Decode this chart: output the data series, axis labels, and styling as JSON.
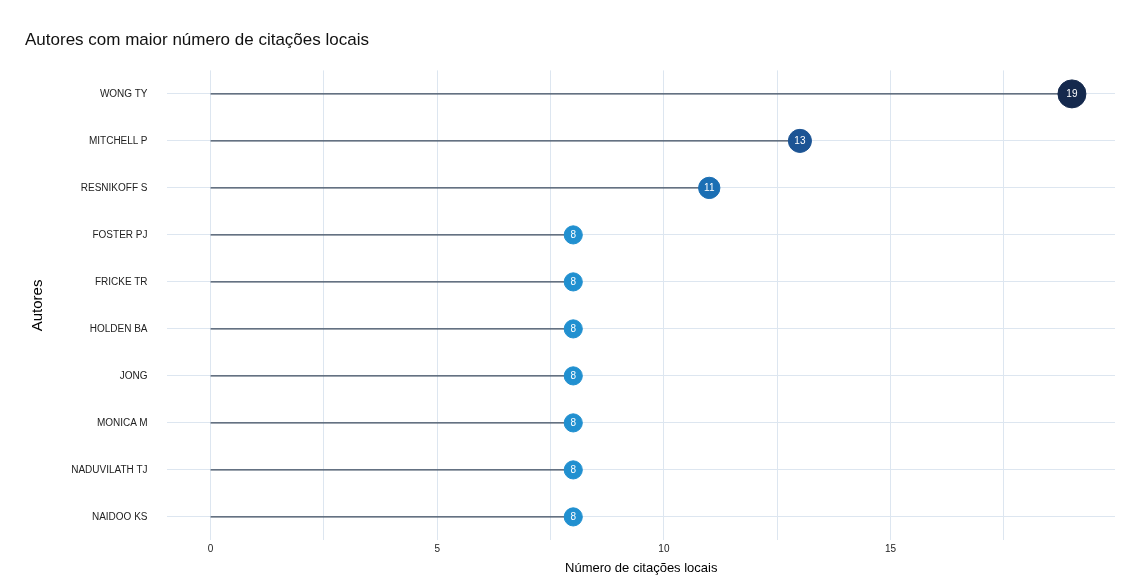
{
  "chart_data": {
    "type": "lollipop",
    "orientation": "horizontal",
    "title": "Autores com maior número de citações locais",
    "xlabel": "Número de citações locais",
    "ylabel": "Autores",
    "categories": [
      "WONG TY",
      "MITCHELL P",
      "RESNIKOFF S",
      "FOSTER PJ",
      "FRICKE TR",
      "HOLDEN BA",
      "JONG",
      "MONICA M",
      "NADUVILATH TJ",
      "NAIDOO KS"
    ],
    "values": [
      19,
      13,
      11,
      8,
      8,
      8,
      8,
      8,
      8,
      8
    ],
    "sizes": [
      1,
      0.68,
      0.58,
      0.42,
      0.42,
      0.42,
      0.42,
      0.42,
      0.42,
      0.42
    ],
    "colors": [
      "#15294d",
      "#1c5494",
      "#1b6fb4",
      "#2190d0",
      "#2190d0",
      "#2190d0",
      "#2190d0",
      "#2190d0",
      "#2190d0",
      "#2190d0"
    ],
    "xlim": [
      -0.95,
      19.95
    ],
    "xticks": [
      0,
      {
        "value": 2.5,
        "label": null
      },
      5,
      {
        "value": 7.5,
        "label": null
      },
      10,
      {
        "value": 12.5,
        "label": null
      },
      15,
      {
        "value": 17.5,
        "label": null
      }
    ],
    "grid": true,
    "data_labels": true,
    "legend": false,
    "marker": "circle"
  }
}
